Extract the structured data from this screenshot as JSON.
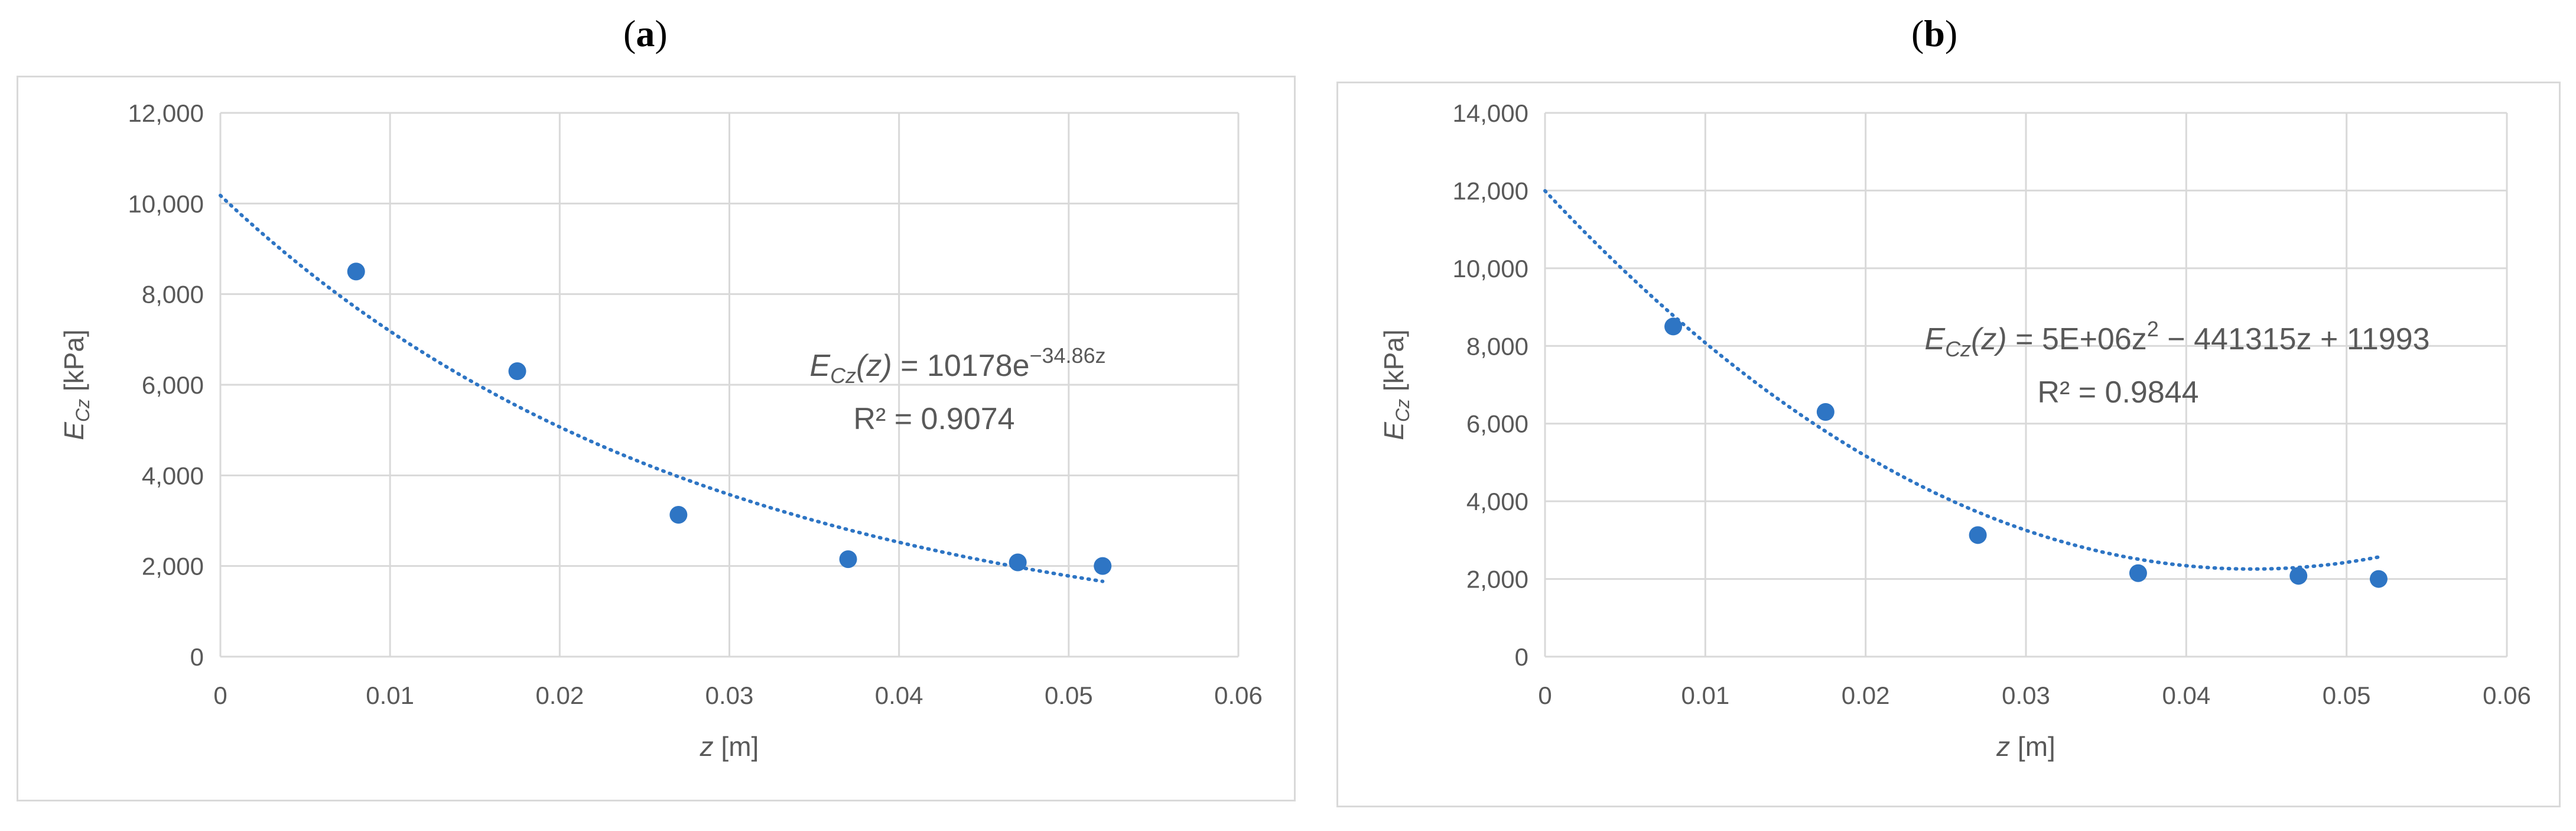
{
  "panels": [
    {
      "label": "a"
    },
    {
      "label": "b"
    }
  ],
  "colors": {
    "marker": "#2E75C4",
    "trend": "#2E75C4",
    "grid": "#d9d9d9",
    "text": "#595959"
  },
  "chart_data": [
    {
      "type": "scatter",
      "xlabel_main": "z",
      "xlabel_unit": " [m]",
      "ylabel_main": "E",
      "ylabel_sub": "Cz",
      "ylabel_unit": " [kPa]",
      "xlim": [
        0,
        0.06
      ],
      "ylim": [
        0,
        12000
      ],
      "x_ticks": [
        0,
        0.01,
        0.02,
        0.03,
        0.04,
        0.05,
        0.06
      ],
      "x_tick_labels": [
        "0",
        "0.01",
        "0.02",
        "0.03",
        "0.04",
        "0.05",
        "0.06"
      ],
      "y_ticks": [
        0,
        2000,
        4000,
        6000,
        8000,
        10000,
        12000
      ],
      "y_tick_labels": [
        "0",
        "2,000",
        "4,000",
        "6,000",
        "8,000",
        "10,000",
        "12,000"
      ],
      "grid": true,
      "series": [
        {
          "x": [
            0.008,
            0.0175,
            0.027,
            0.037,
            0.047,
            0.052
          ],
          "y": [
            8500,
            6300,
            3130,
            2150,
            2080,
            2000
          ]
        }
      ],
      "trendline": {
        "kind": "exponential",
        "a": 10178,
        "b": -34.86,
        "x_range": [
          0,
          0.052
        ],
        "style": "dotted"
      },
      "equation": {
        "lhs_main": "E",
        "lhs_sub": "Cz",
        "lhs_arg": "(z)",
        "rhs": " = 10178e",
        "exp": "−34.86z"
      },
      "r2": "R² = 0.9074"
    },
    {
      "type": "scatter",
      "xlabel_main": "z",
      "xlabel_unit": " [m]",
      "ylabel_main": "E",
      "ylabel_sub": "Cz",
      "ylabel_unit": " [kPa]",
      "xlim": [
        0,
        0.06
      ],
      "ylim": [
        0,
        14000
      ],
      "x_ticks": [
        0,
        0.01,
        0.02,
        0.03,
        0.04,
        0.05,
        0.06
      ],
      "x_tick_labels": [
        "0",
        "0.01",
        "0.02",
        "0.03",
        "0.04",
        "0.05",
        "0.06"
      ],
      "y_ticks": [
        0,
        2000,
        4000,
        6000,
        8000,
        10000,
        12000,
        14000
      ],
      "y_tick_labels": [
        "0",
        "2,000",
        "4,000",
        "6,000",
        "8,000",
        "10,000",
        "12,000",
        "14,000"
      ],
      "grid": true,
      "series": [
        {
          "x": [
            0.008,
            0.0175,
            0.027,
            0.037,
            0.047,
            0.052
          ],
          "y": [
            8500,
            6300,
            3130,
            2150,
            2080,
            2000
          ]
        }
      ],
      "trendline": {
        "kind": "polynomial",
        "c2": 5000000,
        "c1": -441315,
        "c0": 11993,
        "x_range": [
          0,
          0.052
        ],
        "style": "dotted"
      },
      "equation": {
        "lhs_main": "E",
        "lhs_sub": "Cz",
        "lhs_arg": "(z)",
        "rhs": " = 5E+06z",
        "sup": "2",
        "rhs2": " − 441315z + 11993"
      },
      "r2": "R² = 0.9844"
    }
  ]
}
